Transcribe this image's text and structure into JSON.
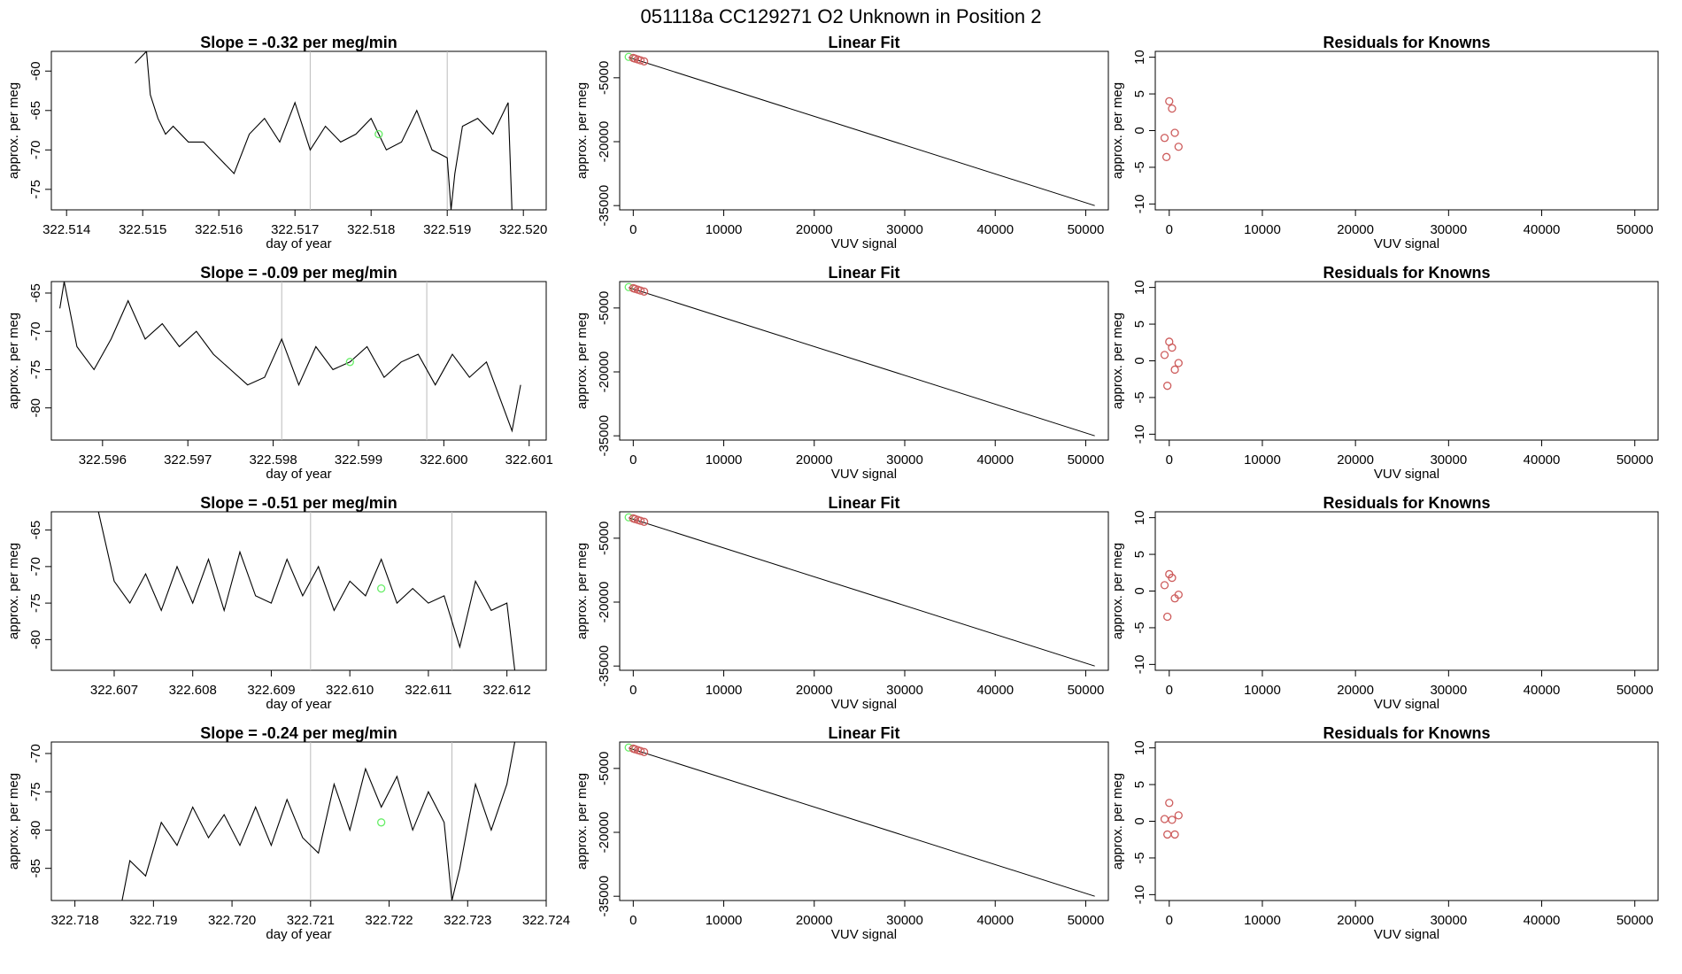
{
  "figure": {
    "title": "051118a      CC129271    O2 Unknown in Position  2",
    "colors": {
      "line": "#000000",
      "known_points": "#cd5c5c",
      "unknown_point": "#66ee66",
      "marker_line": "#bbbbbb"
    }
  },
  "chart_data": [
    {
      "row": 1,
      "time_series": {
        "type": "line",
        "title": "Slope =  -0.32  per meg/min",
        "xlabel": "day of year",
        "ylabel": "approx. per meg",
        "xlim": [
          322.5138,
          322.5203
        ],
        "ylim": [
          -77.6,
          -57.5
        ],
        "xticks": [
          "322.514",
          "322.515",
          "322.516",
          "322.517",
          "322.518",
          "322.519",
          "322.520"
        ],
        "yticks": [
          "-60",
          "-65",
          "-70",
          "-75"
        ],
        "markers": [
          322.5172,
          322.519
        ],
        "unknown_point": {
          "x": 322.5181,
          "y": -68.0
        },
        "series": {
          "name": "signal",
          "x": [
            322.5149,
            322.51505,
            322.5151,
            322.5152,
            322.5153,
            322.5154,
            322.5156,
            322.5158,
            322.516,
            322.5162,
            322.5164,
            322.5166,
            322.5168,
            322.517,
            322.5172,
            322.5174,
            322.5176,
            322.5178,
            322.518,
            322.5182,
            322.5184,
            322.5186,
            322.5188,
            322.519,
            322.51905,
            322.5191,
            322.5192,
            322.5194,
            322.5196,
            322.5198,
            322.51985
          ],
          "y": [
            -59,
            -57.5,
            -63,
            -66,
            -68,
            -67,
            -69,
            -69,
            -71,
            -73,
            -68,
            -66,
            -69,
            -64,
            -70,
            -67,
            -69,
            -68,
            -66,
            -70,
            -69,
            -65,
            -70,
            -71,
            -77.6,
            -73,
            -67,
            -66,
            -68,
            -64,
            -77.6
          ]
        }
      },
      "linear_fit": {
        "type": "scatter",
        "title": "Linear Fit",
        "xlabel": "VUV signal",
        "ylabel": "approx. per meg",
        "xlim": [
          -1500,
          52500
        ],
        "ylim": [
          -36000,
          1200
        ],
        "xticks": [
          "0",
          "10000",
          "20000",
          "30000",
          "40000",
          "50000"
        ],
        "yticks": [
          "-5000",
          "-20000",
          "-35000"
        ],
        "line": {
          "x": [
            -500,
            51000
          ],
          "y": [
            -200,
            -35000
          ]
        },
        "points": {
          "x": [
            -500,
            0,
            200,
            500,
            800,
            1200
          ],
          "y": [
            -100,
            -350,
            -500,
            -700,
            -900,
            -1150
          ]
        }
      },
      "residuals": {
        "type": "scatter",
        "title": "Residuals for Knowns",
        "xlabel": "VUV signal",
        "ylabel": "approx. per meg",
        "xlim": [
          -1500,
          52500
        ],
        "ylim": [
          -10.8,
          10.8
        ],
        "xticks": [
          "0",
          "10000",
          "20000",
          "30000",
          "40000",
          "50000"
        ],
        "yticks": [
          "10",
          "5",
          "0",
          "-5",
          "-10"
        ],
        "x": [
          -500,
          -300,
          0,
          300,
          600,
          1000
        ],
        "y": [
          -1.0,
          -3.6,
          4.0,
          3.0,
          -0.3,
          -2.2
        ]
      }
    },
    {
      "row": 2,
      "time_series": {
        "type": "line",
        "title": "Slope =  -0.09  per meg/min",
        "xlabel": "day of year",
        "ylabel": "approx. per meg",
        "xlim": [
          322.5954,
          322.6012
        ],
        "ylim": [
          -84.2,
          -63.5
        ],
        "xticks": [
          "322.596",
          "322.597",
          "322.598",
          "322.599",
          "322.600",
          "322.601"
        ],
        "yticks": [
          "-65",
          "-70",
          "-75",
          "-80"
        ],
        "markers": [
          322.5981,
          322.5998
        ],
        "unknown_point": {
          "x": 322.5989,
          "y": -74.0
        },
        "series": {
          "name": "signal",
          "x": [
            322.5955,
            322.59555,
            322.5957,
            322.5959,
            322.5961,
            322.5963,
            322.5965,
            322.5967,
            322.5969,
            322.5971,
            322.5973,
            322.5975,
            322.5977,
            322.5979,
            322.5981,
            322.5983,
            322.5985,
            322.5987,
            322.5989,
            322.5991,
            322.5993,
            322.5995,
            322.5997,
            322.5999,
            322.6001,
            322.6003,
            322.6005,
            322.6007,
            322.6008,
            322.6009
          ],
          "y": [
            -67,
            -63.5,
            -72,
            -75,
            -71,
            -66,
            -71,
            -69,
            -72,
            -70,
            -73,
            -75,
            -77,
            -76,
            -71,
            -77,
            -72,
            -75,
            -74,
            -72,
            -76,
            -74,
            -73,
            -77,
            -73,
            -76,
            -74,
            -80,
            -83,
            -77
          ]
        }
      },
      "linear_fit": {
        "type": "scatter",
        "title": "Linear Fit",
        "xlabel": "VUV signal",
        "ylabel": "approx. per meg",
        "xlim": [
          -1500,
          52500
        ],
        "ylim": [
          -36000,
          1200
        ],
        "xticks": [
          "0",
          "10000",
          "20000",
          "30000",
          "40000",
          "50000"
        ],
        "yticks": [
          "-5000",
          "-20000",
          "-35000"
        ],
        "line": {
          "x": [
            -500,
            51000
          ],
          "y": [
            -200,
            -35000
          ]
        },
        "points": {
          "x": [
            -500,
            0,
            200,
            500,
            800,
            1200
          ],
          "y": [
            -100,
            -350,
            -500,
            -700,
            -900,
            -1150
          ]
        }
      },
      "residuals": {
        "type": "scatter",
        "title": "Residuals for Knowns",
        "xlabel": "VUV signal",
        "ylabel": "approx. per meg",
        "xlim": [
          -1500,
          52500
        ],
        "ylim": [
          -10.8,
          10.8
        ],
        "xticks": [
          "0",
          "10000",
          "20000",
          "30000",
          "40000",
          "50000"
        ],
        "yticks": [
          "10",
          "5",
          "0",
          "-5",
          "-10"
        ],
        "x": [
          -500,
          -200,
          0,
          300,
          600,
          1000
        ],
        "y": [
          0.8,
          -3.4,
          2.6,
          1.8,
          -1.2,
          -0.3
        ]
      }
    },
    {
      "row": 3,
      "time_series": {
        "type": "line",
        "title": "Slope =  -0.51  per meg/min",
        "xlabel": "day of year",
        "ylabel": "approx. per meg",
        "xlim": [
          322.6062,
          322.6125
        ],
        "ylim": [
          -84.2,
          -62.5
        ],
        "xticks": [
          "322.607",
          "322.608",
          "322.609",
          "322.610",
          "322.611",
          "322.612"
        ],
        "yticks": [
          "-65",
          "-70",
          "-75",
          "-80"
        ],
        "markers": [
          322.6095,
          322.6113
        ],
        "unknown_point": {
          "x": 322.6104,
          "y": -73.0
        },
        "series": {
          "name": "signal",
          "x": [
            322.6068,
            322.607,
            322.6072,
            322.6074,
            322.6076,
            322.6078,
            322.608,
            322.6082,
            322.6084,
            322.6086,
            322.6088,
            322.609,
            322.6092,
            322.6094,
            322.6096,
            322.6098,
            322.61,
            322.6102,
            322.6104,
            322.6106,
            322.6108,
            322.611,
            322.6112,
            322.6114,
            322.6116,
            322.6118,
            322.612,
            322.6121
          ],
          "y": [
            -62.5,
            -72,
            -75,
            -71,
            -76,
            -70,
            -75,
            -69,
            -76,
            -68,
            -74,
            -75,
            -69,
            -74,
            -70,
            -76,
            -72,
            -74,
            -69,
            -75,
            -73,
            -75,
            -74,
            -81,
            -72,
            -76,
            -75,
            -84.2
          ]
        }
      },
      "linear_fit": {
        "type": "scatter",
        "title": "Linear Fit",
        "xlabel": "VUV signal",
        "ylabel": "approx. per meg",
        "xlim": [
          -1500,
          52500
        ],
        "ylim": [
          -36000,
          1200
        ],
        "xticks": [
          "0",
          "10000",
          "20000",
          "30000",
          "40000",
          "50000"
        ],
        "yticks": [
          "-5000",
          "-20000",
          "-35000"
        ],
        "line": {
          "x": [
            -500,
            51000
          ],
          "y": [
            -200,
            -35000
          ]
        },
        "points": {
          "x": [
            -500,
            0,
            200,
            500,
            800,
            1200
          ],
          "y": [
            -100,
            -350,
            -500,
            -700,
            -900,
            -1150
          ]
        }
      },
      "residuals": {
        "type": "scatter",
        "title": "Residuals for Knowns",
        "xlabel": "VUV signal",
        "ylabel": "approx. per meg",
        "xlim": [
          -1500,
          52500
        ],
        "ylim": [
          -10.8,
          10.8
        ],
        "xticks": [
          "0",
          "10000",
          "20000",
          "30000",
          "40000",
          "50000"
        ],
        "yticks": [
          "10",
          "5",
          "0",
          "-5",
          "-10"
        ],
        "x": [
          -500,
          -200,
          0,
          300,
          600,
          1000
        ],
        "y": [
          0.8,
          -3.5,
          2.3,
          1.8,
          -1.0,
          -0.5
        ]
      }
    },
    {
      "row": 4,
      "time_series": {
        "type": "line",
        "title": "Slope =  -0.24  per meg/min",
        "xlabel": "day of year",
        "ylabel": "approx. per meg",
        "xlim": [
          322.7177,
          322.724
        ],
        "ylim": [
          -89.2,
          -68.5
        ],
        "xticks": [
          "322.718",
          "322.719",
          "322.720",
          "322.721",
          "322.722",
          "322.723",
          "322.724"
        ],
        "yticks": [
          "-70",
          "-75",
          "-80",
          "-85"
        ],
        "markers": [
          322.721,
          322.7228
        ],
        "unknown_point": {
          "x": 322.7219,
          "y": -79.0
        },
        "series": {
          "name": "signal",
          "x": [
            322.7186,
            322.7187,
            322.7189,
            322.7191,
            322.7193,
            322.7195,
            322.7197,
            322.7199,
            322.7201,
            322.7203,
            322.7205,
            322.7207,
            322.7209,
            322.7211,
            322.7213,
            322.7215,
            322.7217,
            322.7219,
            322.7221,
            322.7223,
            322.7225,
            322.7227,
            322.7228,
            322.7229,
            322.7231,
            322.7233,
            322.7235,
            322.7236
          ],
          "y": [
            -89.2,
            -84,
            -86,
            -79,
            -82,
            -77,
            -81,
            -78,
            -82,
            -77,
            -82,
            -76,
            -81,
            -83,
            -74,
            -80,
            -72,
            -77,
            -73,
            -80,
            -75,
            -79,
            -89.2,
            -85,
            -74,
            -80,
            -74,
            -68.5
          ]
        }
      },
      "linear_fit": {
        "type": "scatter",
        "title": "Linear Fit",
        "xlabel": "VUV signal",
        "ylabel": "approx. per meg",
        "xlim": [
          -1500,
          52500
        ],
        "ylim": [
          -36000,
          1200
        ],
        "xticks": [
          "0",
          "10000",
          "20000",
          "30000",
          "40000",
          "50000"
        ],
        "yticks": [
          "-5000",
          "-20000",
          "-35000"
        ],
        "line": {
          "x": [
            -500,
            51000
          ],
          "y": [
            -200,
            -35000
          ]
        },
        "points": {
          "x": [
            -500,
            0,
            200,
            500,
            800,
            1200
          ],
          "y": [
            -100,
            -350,
            -500,
            -700,
            -900,
            -1150
          ]
        }
      },
      "residuals": {
        "type": "scatter",
        "title": "Residuals for Knowns",
        "xlabel": "VUV signal",
        "ylabel": "approx. per meg",
        "xlim": [
          -1500,
          52500
        ],
        "ylim": [
          -10.8,
          10.8
        ],
        "xticks": [
          "0",
          "10000",
          "20000",
          "30000",
          "40000",
          "50000"
        ],
        "yticks": [
          "10",
          "5",
          "0",
          "-5",
          "-10"
        ],
        "x": [
          -500,
          -200,
          0,
          300,
          600,
          1000
        ],
        "y": [
          0.3,
          -1.8,
          2.5,
          0.2,
          -1.8,
          0.8
        ]
      }
    }
  ]
}
